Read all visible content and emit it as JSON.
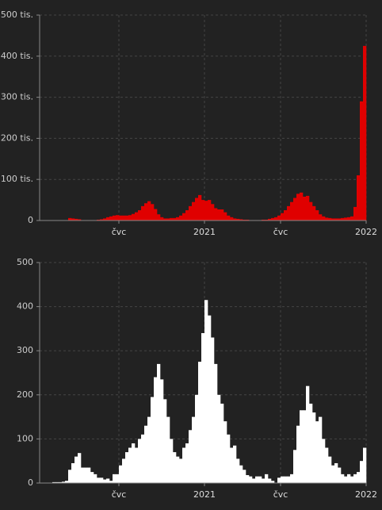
{
  "chart_data": [
    {
      "type": "bar",
      "color": "#e00000",
      "grid": true,
      "xlim": [
        0,
        103
      ],
      "xticks": [
        {
          "value": 25,
          "label": "čvc"
        },
        {
          "value": 52,
          "label": "2021"
        },
        {
          "value": 76,
          "label": "čvc"
        },
        {
          "value": 103,
          "label": "2022"
        }
      ],
      "ylim": [
        0,
        500
      ],
      "yticks": [
        0,
        {
          "value": 100,
          "label": "100 tis."
        },
        {
          "value": 200,
          "label": "200 tis."
        },
        {
          "value": 300,
          "label": "300 tis."
        },
        {
          "value": 400,
          "label": "400 tis."
        },
        {
          "value": 500,
          "label": "500 tis."
        }
      ],
      "x": [
        0,
        1,
        2,
        3,
        4,
        5,
        6,
        7,
        8,
        9,
        10,
        11,
        12,
        13,
        14,
        15,
        16,
        17,
        18,
        19,
        20,
        21,
        22,
        23,
        24,
        25,
        26,
        27,
        28,
        29,
        30,
        31,
        32,
        33,
        34,
        35,
        36,
        37,
        38,
        39,
        40,
        41,
        42,
        43,
        44,
        45,
        46,
        47,
        48,
        49,
        50,
        51,
        52,
        53,
        54,
        55,
        56,
        57,
        58,
        59,
        60,
        61,
        62,
        63,
        64,
        65,
        66,
        67,
        68,
        69,
        70,
        71,
        72,
        73,
        74,
        75,
        76,
        77,
        78,
        79,
        80,
        81,
        82,
        83,
        84,
        85,
        86,
        87,
        88,
        89,
        90,
        91,
        92,
        93,
        94,
        95,
        96,
        97,
        98,
        99,
        100,
        101,
        102
      ],
      "values": [
        0,
        0,
        0,
        0,
        0,
        0,
        0,
        0,
        0,
        6,
        5,
        4,
        3,
        1,
        1,
        1,
        1,
        1,
        2,
        3,
        5,
        8,
        10,
        12,
        13,
        12,
        12,
        12,
        13,
        16,
        20,
        25,
        35,
        42,
        47,
        40,
        28,
        15,
        8,
        5,
        5,
        6,
        6,
        8,
        12,
        18,
        25,
        35,
        45,
        55,
        62,
        50,
        48,
        50,
        40,
        30,
        27,
        27,
        20,
        12,
        8,
        5,
        4,
        3,
        2,
        2,
        1,
        1,
        1,
        1,
        2,
        2,
        4,
        6,
        8,
        12,
        18,
        25,
        35,
        45,
        55,
        65,
        68,
        58,
        60,
        45,
        35,
        25,
        15,
        10,
        7,
        6,
        5,
        5,
        5,
        6,
        7,
        8,
        10,
        33,
        110,
        290,
        425
      ]
    },
    {
      "type": "bar",
      "color": "#ffffff",
      "grid": true,
      "xlim": [
        0,
        103
      ],
      "xticks": [
        {
          "value": 25,
          "label": "čvc"
        },
        {
          "value": 52,
          "label": "2021"
        },
        {
          "value": 76,
          "label": "čvc"
        },
        {
          "value": 103,
          "label": "2022"
        }
      ],
      "ylim": [
        0,
        500
      ],
      "yticks": [
        0,
        100,
        200,
        300,
        400,
        500
      ],
      "x": [
        0,
        1,
        2,
        3,
        4,
        5,
        6,
        7,
        8,
        9,
        10,
        11,
        12,
        13,
        14,
        15,
        16,
        17,
        18,
        19,
        20,
        21,
        22,
        23,
        24,
        25,
        26,
        27,
        28,
        29,
        30,
        31,
        32,
        33,
        34,
        35,
        36,
        37,
        38,
        39,
        40,
        41,
        42,
        43,
        44,
        45,
        46,
        47,
        48,
        49,
        50,
        51,
        52,
        53,
        54,
        55,
        56,
        57,
        58,
        59,
        60,
        61,
        62,
        63,
        64,
        65,
        66,
        67,
        68,
        69,
        70,
        71,
        72,
        73,
        74,
        75,
        76,
        77,
        78,
        79,
        80,
        81,
        82,
        83,
        84,
        85,
        86,
        87,
        88,
        89,
        90,
        91,
        92,
        93,
        94,
        95,
        96,
        97,
        98,
        99,
        100,
        101,
        102
      ],
      "values": [
        0,
        0,
        0,
        0,
        2,
        2,
        2,
        3,
        5,
        30,
        45,
        60,
        68,
        35,
        35,
        35,
        25,
        20,
        12,
        12,
        8,
        10,
        5,
        20,
        20,
        40,
        55,
        70,
        80,
        90,
        80,
        100,
        110,
        130,
        150,
        195,
        240,
        270,
        235,
        190,
        150,
        100,
        70,
        60,
        55,
        80,
        90,
        120,
        150,
        200,
        275,
        340,
        415,
        380,
        330,
        270,
        200,
        180,
        140,
        110,
        80,
        85,
        55,
        40,
        30,
        18,
        15,
        10,
        15,
        15,
        10,
        20,
        10,
        5,
        0,
        12,
        15,
        15,
        15,
        20,
        75,
        130,
        165,
        165,
        220,
        180,
        160,
        140,
        150,
        100,
        80,
        60,
        40,
        45,
        35,
        20,
        15,
        20,
        15,
        20,
        25,
        50,
        80
      ]
    }
  ]
}
